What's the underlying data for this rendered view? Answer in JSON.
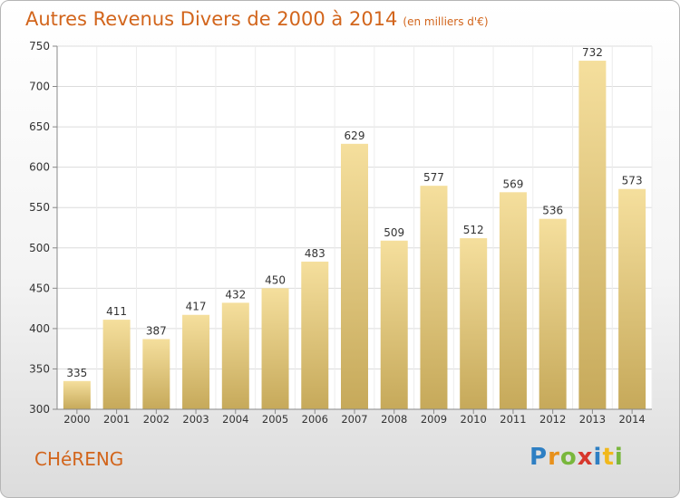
{
  "title": "Autres Revenus Divers de 2000 à 2014",
  "unit": "(en milliers d'€)",
  "commune": "CHéRENG",
  "logo": "Proxiti",
  "colors": {
    "title": "#d2651c",
    "bar_light": "#f5df9d",
    "bar_dark": "#c6a95a"
  },
  "chart_data": {
    "type": "bar",
    "categories": [
      "2000",
      "2001",
      "2002",
      "2003",
      "2004",
      "2005",
      "2006",
      "2007",
      "2008",
      "2009",
      "2010",
      "2011",
      "2012",
      "2013",
      "2014"
    ],
    "values": [
      335,
      411,
      387,
      417,
      432,
      450,
      483,
      629,
      509,
      577,
      512,
      569,
      536,
      732,
      573
    ],
    "ylim": [
      300,
      750
    ],
    "yticks": [
      300,
      350,
      400,
      450,
      500,
      550,
      600,
      650,
      700,
      750
    ],
    "grid": true
  }
}
